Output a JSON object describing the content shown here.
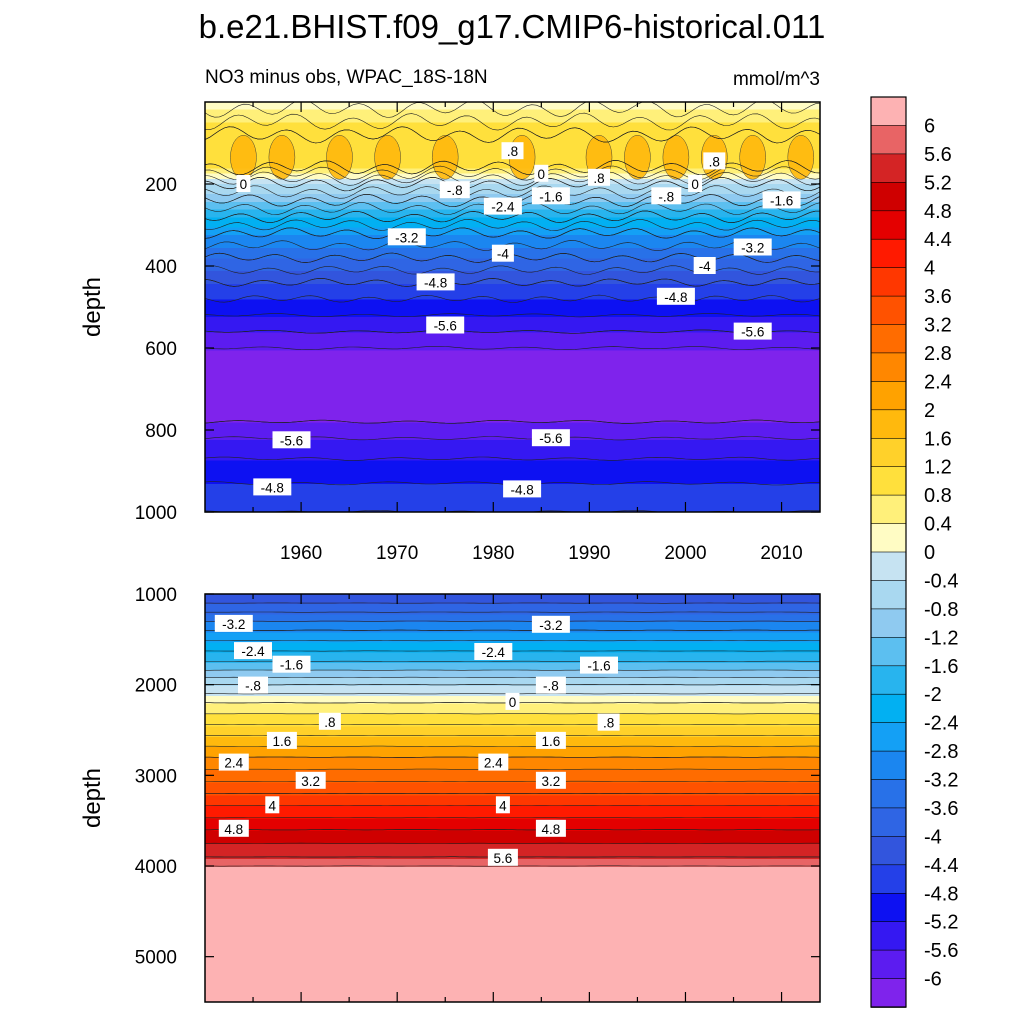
{
  "title": "b.e21.BHIST.f09_g17.CMIP6-historical.011",
  "top_panel": {
    "subtitle_left": "NO3 minus obs, WPAC_18S-18N",
    "subtitle_right": "mmol/m^3",
    "ylabel": "depth",
    "y_ticks": [
      "200",
      "400",
      "600",
      "800",
      "1000"
    ],
    "x_ticks": [
      "1960",
      "1970",
      "1980",
      "1990",
      "2000",
      "2010"
    ]
  },
  "bottom_panel": {
    "ylabel": "depth",
    "y_ticks": [
      "1000",
      "2000",
      "3000",
      "4000",
      "5000"
    ]
  },
  "colorbar": {
    "labels": [
      "6",
      "5.6",
      "5.2",
      "4.8",
      "4.4",
      "4",
      "3.6",
      "3.2",
      "2.8",
      "2.4",
      "2",
      "1.6",
      "1.2",
      "0.8",
      "0.4",
      "0",
      "-0.4",
      "-0.8",
      "-1.2",
      "-1.6",
      "-2",
      "-2.4",
      "-2.8",
      "-3.2",
      "-3.6",
      "-4",
      "-4.4",
      "-4.8",
      "-5.2",
      "-5.6",
      "-6"
    ],
    "colors": [
      "#fdb2b3",
      "#e86465",
      "#d42425",
      "#cf0000",
      "#e40000",
      "#ff1a00",
      "#ff3700",
      "#ff5200",
      "#ff6c00",
      "#ff8700",
      "#ffa200",
      "#ffb90d",
      "#ffd12a",
      "#ffe03c",
      "#fff07a",
      "#fffcc4",
      "#c6e3f2",
      "#a9d8f0",
      "#8fcaf0",
      "#5cbff0",
      "#28b4ee",
      "#02b0f2",
      "#14a0f5",
      "#1b86f0",
      "#2871e8",
      "#2f65e4",
      "#3255dd",
      "#2440e8",
      "#0d11f2",
      "#3518f2",
      "#5c1cf0",
      "#7f23ec"
    ]
  },
  "chart_data": [
    {
      "type": "heatmap",
      "panel": "top",
      "title": "NO3 minus obs, WPAC_18S-18N",
      "units": "mmol/m^3",
      "xlabel": "",
      "ylabel": "depth",
      "xlim": [
        1950,
        2014
      ],
      "ylim": [
        1000,
        0
      ],
      "depth": [
        0,
        80,
        160,
        200,
        240,
        280,
        320,
        380,
        440,
        500,
        560,
        620,
        700,
        780,
        840,
        900,
        960,
        1000
      ],
      "values": [
        0.2,
        1.2,
        0.8,
        -0.4,
        -1.2,
        -2.0,
        -2.8,
        -3.6,
        -4.4,
        -5.0,
        -5.6,
        -6.2,
        -6.3,
        -6.0,
        -5.4,
        -5.0,
        -4.6,
        -4.4
      ],
      "contour_labels": [
        {
          "text": ".8",
          "year": 1982,
          "depth": 120
        },
        {
          "text": "0",
          "year": 1985,
          "depth": 175
        },
        {
          "text": ".8",
          "year": 1991,
          "depth": 185
        },
        {
          "text": ".8",
          "year": 2003,
          "depth": 145
        },
        {
          "text": "0",
          "year": 1954,
          "depth": 200
        },
        {
          "text": "-.8",
          "year": 1976,
          "depth": 215
        },
        {
          "text": "0",
          "year": 2001,
          "depth": 200
        },
        {
          "text": "-1.6",
          "year": 1986,
          "depth": 230
        },
        {
          "text": "-.8",
          "year": 1998,
          "depth": 230
        },
        {
          "text": "-2.4",
          "year": 1981,
          "depth": 255
        },
        {
          "text": "-1.6",
          "year": 2010,
          "depth": 240
        },
        {
          "text": "-3.2",
          "year": 1971,
          "depth": 330
        },
        {
          "text": "-3.2",
          "year": 2007,
          "depth": 355
        },
        {
          "text": "-4",
          "year": 1981,
          "depth": 370
        },
        {
          "text": "-4",
          "year": 2002,
          "depth": 400
        },
        {
          "text": "-4.8",
          "year": 1974,
          "depth": 440
        },
        {
          "text": "-4.8",
          "year": 1999,
          "depth": 475
        },
        {
          "text": "-5.6",
          "year": 1975,
          "depth": 545
        },
        {
          "text": "-5.6",
          "year": 2007,
          "depth": 560
        },
        {
          "text": "-5.6",
          "year": 1959,
          "depth": 825
        },
        {
          "text": "-5.6",
          "year": 1986,
          "depth": 820
        },
        {
          "text": "-4.8",
          "year": 1957,
          "depth": 940
        },
        {
          "text": "-4.8",
          "year": 1983,
          "depth": 945
        }
      ]
    },
    {
      "type": "heatmap",
      "panel": "bottom",
      "units": "mmol/m^3",
      "xlabel": "",
      "ylabel": "depth",
      "xlim": [
        1950,
        2014
      ],
      "ylim": [
        5500,
        1000
      ],
      "depth": [
        1000,
        1400,
        1800,
        2000,
        2200,
        2500,
        2800,
        3200,
        3600,
        3900,
        4000,
        5500
      ],
      "values": [
        -4.4,
        -2.8,
        -1.4,
        -0.4,
        0.4,
        1.4,
        2.4,
        3.6,
        4.8,
        5.6,
        6.0,
        6.0
      ],
      "contour_labels": [
        {
          "text": "-3.2",
          "year": 1953,
          "depth": 1330
        },
        {
          "text": "-3.2",
          "year": 1986,
          "depth": 1340
        },
        {
          "text": "-2.4",
          "year": 1955,
          "depth": 1630
        },
        {
          "text": "-2.4",
          "year": 1980,
          "depth": 1640
        },
        {
          "text": "-1.6",
          "year": 1959,
          "depth": 1780
        },
        {
          "text": "-1.6",
          "year": 1991,
          "depth": 1790
        },
        {
          "text": "-.8",
          "year": 1955,
          "depth": 2010
        },
        {
          "text": "-.8",
          "year": 1986,
          "depth": 2010
        },
        {
          "text": "0",
          "year": 1982,
          "depth": 2190
        },
        {
          "text": ".8",
          "year": 1963,
          "depth": 2410
        },
        {
          "text": ".8",
          "year": 1992,
          "depth": 2420
        },
        {
          "text": "1.6",
          "year": 1958,
          "depth": 2620
        },
        {
          "text": "1.6",
          "year": 1986,
          "depth": 2620
        },
        {
          "text": "2.4",
          "year": 1953,
          "depth": 2860
        },
        {
          "text": "2.4",
          "year": 1980,
          "depth": 2860
        },
        {
          "text": "3.2",
          "year": 1961,
          "depth": 3060
        },
        {
          "text": "3.2",
          "year": 1986,
          "depth": 3060
        },
        {
          "text": "4",
          "year": 1957,
          "depth": 3330
        },
        {
          "text": "4",
          "year": 1981,
          "depth": 3330
        },
        {
          "text": "4.8",
          "year": 1953,
          "depth": 3590
        },
        {
          "text": "4.8",
          "year": 1986,
          "depth": 3590
        },
        {
          "text": "5.6",
          "year": 1981,
          "depth": 3910
        }
      ]
    }
  ]
}
